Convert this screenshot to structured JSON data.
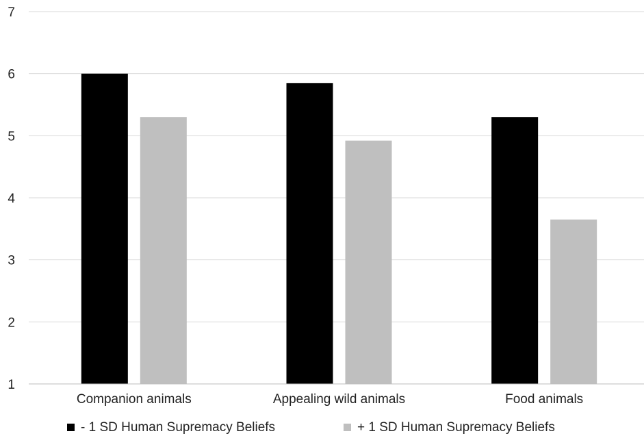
{
  "chart_data": {
    "type": "bar",
    "title": "",
    "xlabel": "",
    "ylabel": "",
    "ylim": [
      1,
      7
    ],
    "yticks": [
      "1",
      "2",
      "3",
      "4",
      "5",
      "6",
      "7"
    ],
    "grid": true,
    "legend_position": "bottom",
    "categories": [
      "Companion animals",
      "Appealing wild animals",
      "Food animals"
    ],
    "series": [
      {
        "name": "- 1 SD Human Supremacy Beliefs",
        "color": "#000000",
        "values": [
          6.0,
          5.85,
          5.3
        ]
      },
      {
        "name": "+ 1 SD Human Supremacy Beliefs",
        "color": "#bfbfbf",
        "values": [
          5.3,
          4.92,
          3.65
        ]
      }
    ]
  }
}
